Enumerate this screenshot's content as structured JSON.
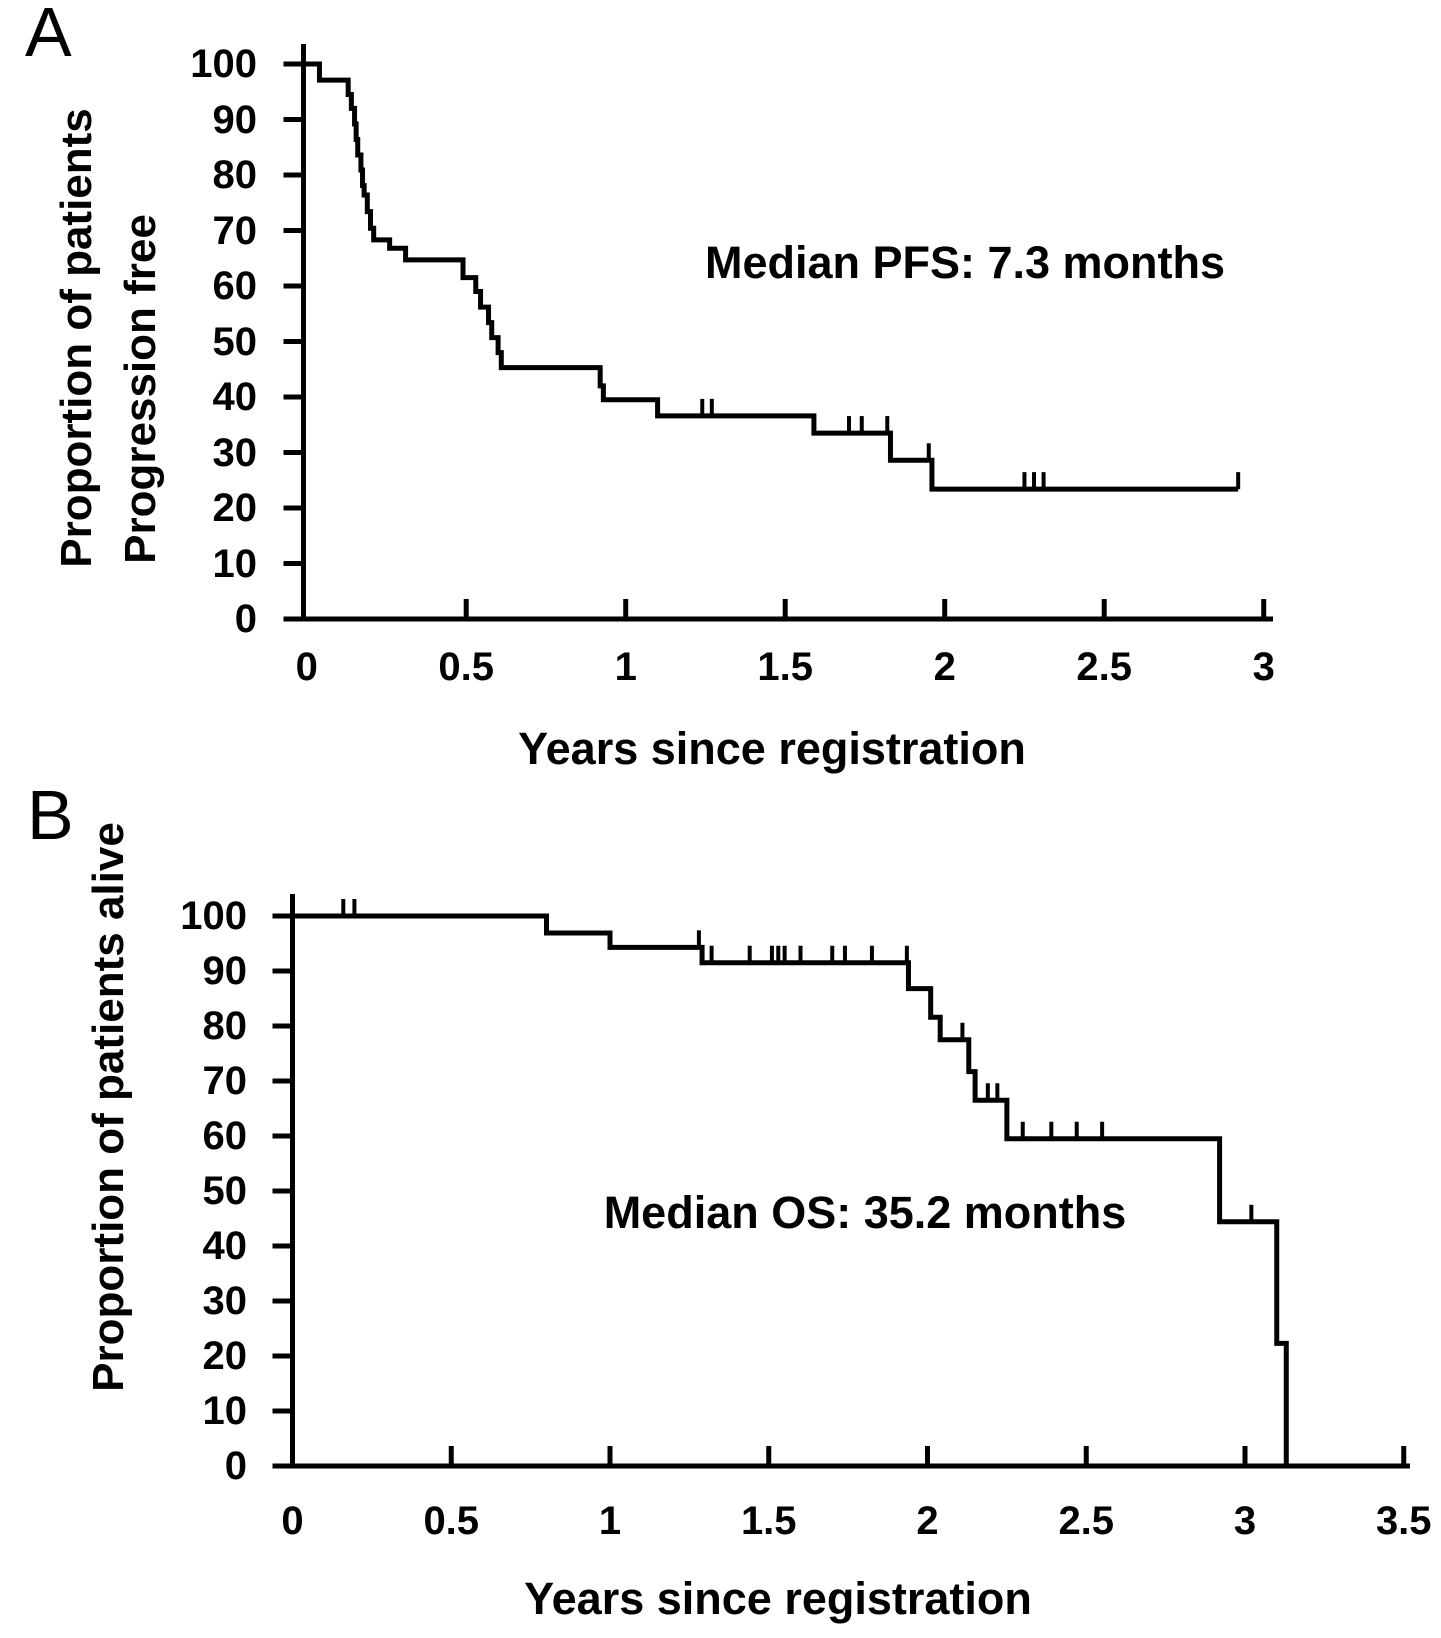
{
  "figure": {
    "panels": [
      {
        "label": "A",
        "annotation": "Median PFS: 7.3 months",
        "x_title": "Years since registration",
        "y_title_lines": [
          "Proportion of patients",
          "Progression free"
        ]
      },
      {
        "label": "B",
        "annotation": "Median OS: 35.2 months",
        "x_title": "Years since registration",
        "y_title_lines": [
          "Proportion of patients alive"
        ]
      }
    ]
  },
  "chart_data": [
    {
      "type": "line",
      "subtype": "kaplan-meier-step",
      "panel": "A",
      "title": "Median PFS: 7.3 months",
      "median_months": 7.3,
      "xlabel": "Years since registration",
      "ylabel": "Proportion of patients Progression free",
      "xlim": [
        0,
        3.1
      ],
      "ylim": [
        0,
        100
      ],
      "xticks": [
        0,
        0.5,
        1,
        1.5,
        2,
        2.5,
        3
      ],
      "yticks": [
        100,
        90,
        80,
        70,
        60,
        50,
        40,
        30,
        20,
        10,
        0
      ],
      "grid": false,
      "legend": false,
      "start": [
        0,
        100
      ],
      "steps": [
        [
          0.04,
          97.1
        ],
        [
          0.13,
          94.5
        ],
        [
          0.14,
          92.0
        ],
        [
          0.15,
          89.2
        ],
        [
          0.155,
          86.4
        ],
        [
          0.16,
          83.6
        ],
        [
          0.17,
          80.9
        ],
        [
          0.175,
          78.1
        ],
        [
          0.18,
          76.4
        ],
        [
          0.19,
          73.4
        ],
        [
          0.2,
          70.4
        ],
        [
          0.21,
          68.3
        ],
        [
          0.26,
          66.8
        ],
        [
          0.31,
          64.7
        ],
        [
          0.49,
          61.5
        ],
        [
          0.53,
          59.0
        ],
        [
          0.545,
          56.2
        ],
        [
          0.57,
          53.4
        ],
        [
          0.58,
          50.7
        ],
        [
          0.6,
          48.0
        ],
        [
          0.61,
          45.3
        ],
        [
          0.92,
          42.0
        ],
        [
          0.93,
          39.5
        ],
        [
          1.1,
          36.6
        ],
        [
          1.59,
          33.5
        ],
        [
          1.83,
          28.6
        ],
        [
          1.96,
          23.4
        ]
      ],
      "end_year": 2.92,
      "censors": [
        [
          1.24,
          36.6
        ],
        [
          1.27,
          36.6
        ],
        [
          1.7,
          33.5
        ],
        [
          1.74,
          33.5
        ],
        [
          1.82,
          33.5
        ],
        [
          1.95,
          28.6
        ],
        [
          2.25,
          23.4
        ],
        [
          2.28,
          23.4
        ],
        [
          2.31,
          23.4
        ],
        [
          2.92,
          23.4
        ]
      ]
    },
    {
      "type": "line",
      "subtype": "kaplan-meier-step",
      "panel": "B",
      "title": "Median OS: 35.2 months",
      "median_months": 35.2,
      "xlabel": "Years since registration",
      "ylabel": "Proportion of patients alive",
      "xlim": [
        0,
        3.6
      ],
      "ylim": [
        0,
        100
      ],
      "xticks": [
        0,
        0.5,
        1,
        1.5,
        2,
        2.5,
        3,
        3.5
      ],
      "yticks": [
        100,
        90,
        80,
        70,
        60,
        50,
        40,
        30,
        20,
        10,
        0
      ],
      "grid": false,
      "legend": false,
      "start": [
        0,
        100
      ],
      "steps": [
        [
          0.8,
          96.9
        ],
        [
          1.0,
          94.3
        ],
        [
          1.29,
          91.5
        ],
        [
          1.94,
          86.8
        ],
        [
          2.01,
          81.6
        ],
        [
          2.04,
          77.5
        ],
        [
          2.13,
          71.7
        ],
        [
          2.15,
          66.5
        ],
        [
          2.25,
          59.5
        ],
        [
          2.92,
          44.4
        ],
        [
          3.1,
          22.3
        ],
        [
          3.13,
          0
        ]
      ],
      "end_year": 3.13,
      "censors": [
        [
          0.16,
          100
        ],
        [
          0.195,
          100
        ],
        [
          1.28,
          94.3
        ],
        [
          1.32,
          91.5
        ],
        [
          1.44,
          91.5
        ],
        [
          1.51,
          91.5
        ],
        [
          1.53,
          91.5
        ],
        [
          1.55,
          91.5
        ],
        [
          1.6,
          91.5
        ],
        [
          1.7,
          91.5
        ],
        [
          1.74,
          91.5
        ],
        [
          1.825,
          91.5
        ],
        [
          1.935,
          91.5
        ],
        [
          2.11,
          77.5
        ],
        [
          2.19,
          66.5
        ],
        [
          2.22,
          66.5
        ],
        [
          2.3,
          59.5
        ],
        [
          2.39,
          59.5
        ],
        [
          2.47,
          59.5
        ],
        [
          2.55,
          59.5
        ],
        [
          3.02,
          44.4
        ]
      ]
    }
  ]
}
